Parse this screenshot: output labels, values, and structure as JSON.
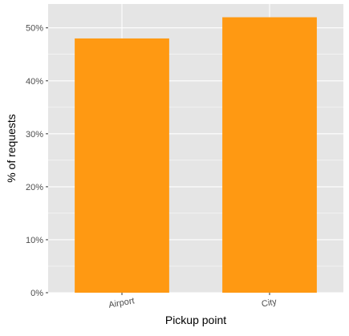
{
  "chart_data": {
    "type": "bar",
    "categories": [
      "Airport",
      "City"
    ],
    "values": [
      48,
      52
    ],
    "xlabel": "Pickup point",
    "ylabel": "% of requests",
    "ylim": [
      0,
      54.5
    ],
    "y_ticks": [
      0,
      10,
      20,
      30,
      40,
      50
    ],
    "y_tick_labels": [
      "0%",
      "10%",
      "20%",
      "30%",
      "40%",
      "50%"
    ],
    "grid": true,
    "bar_color": "#FF9912",
    "panel_background": "#E5E5E5",
    "grid_color": "#FFFFFF"
  }
}
